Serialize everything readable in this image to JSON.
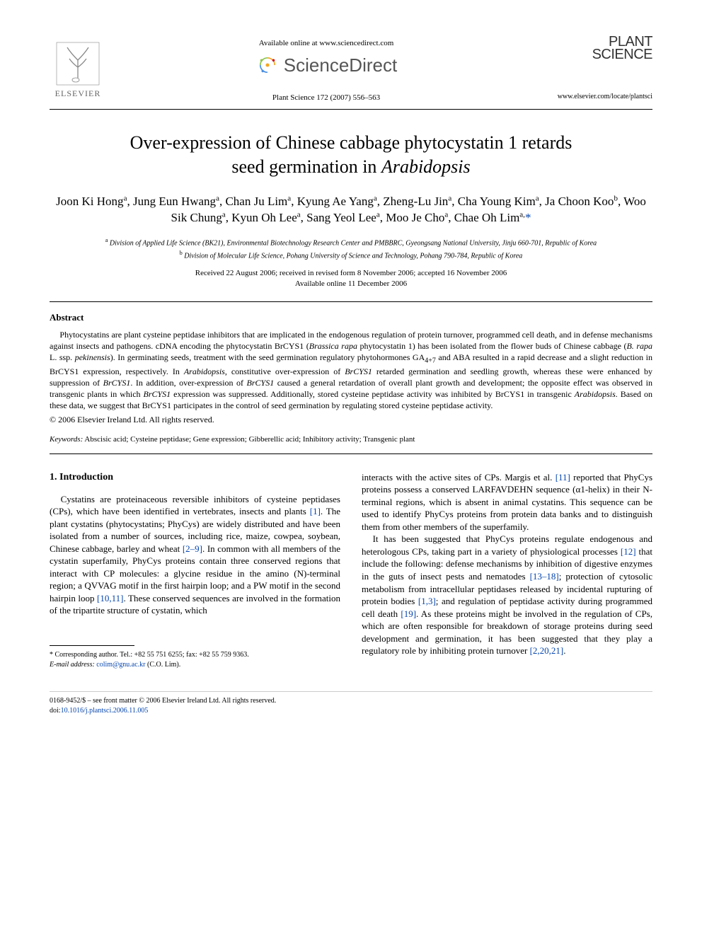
{
  "header": {
    "available_online": "Available online at www.sciencedirect.com",
    "sciencedirect": "ScienceDirect",
    "journal_ref": "Plant Science 172 (2007) 556–563",
    "elsevier": "ELSEVIER",
    "plant_science_top": "PLANT",
    "plant_science_bottom": "SCIENCE",
    "journal_url": "www.elsevier.com/locate/plantsci"
  },
  "title_line1": "Over-expression of Chinese cabbage phytocystatin 1 retards",
  "title_line2_pre": "seed germination in ",
  "title_line2_italic": "Arabidopsis",
  "authors_html": "Joon Ki Hong<sup>a</sup>, Jung Eun Hwang<sup>a</sup>, Chan Ju Lim<sup>a</sup>, Kyung Ae Yang<sup>a</sup>, Zheng-Lu Jin<sup>a</sup>, Cha Young Kim<sup>a</sup>, Ja Choon Koo<sup>b</sup>, Woo Sik Chung<sup>a</sup>, Kyun Oh Lee<sup>a</sup>, Sang Yeol Lee<sup>a</sup>, Moo Je Cho<sup>a</sup>, Chae Oh Lim<sup>a,</sup>",
  "corr_marker": "*",
  "affiliations": {
    "a": "Division of Applied Life Science (BK21), Environmental Biotechnology Research Center and PMBBRC, Gyeongsang National University, Jinju 660-701, Republic of Korea",
    "b": "Division of Molecular Life Science, Pohang University of Science and Technology, Pohang 790-784, Republic of Korea"
  },
  "dates_line1": "Received 22 August 2006; received in revised form 8 November 2006; accepted 16 November 2006",
  "dates_line2": "Available online 11 December 2006",
  "abstract_heading": "Abstract",
  "abstract_body": "Phytocystatins are plant cysteine peptidase inhibitors that are implicated in the endogenous regulation of protein turnover, programmed cell death, and in defense mechanisms against insects and pathogens. cDNA encoding the phytocystatin BrCYS1 (<span class=\"italic\">Brassica rapa</span> phytocystatin 1) has been isolated from the flower buds of Chinese cabbage (<span class=\"italic\">B. rapa</span> L. ssp. <span class=\"italic\">pekinensis</span>). In germinating seeds, treatment with the seed germination regulatory phytohormones GA<sub>4+7</sub> and ABA resulted in a rapid decrease and a slight reduction in BrCYS1 expression, respectively. In <span class=\"italic\">Arabidopsis</span>, constitutive over-expression of <span class=\"italic\">BrCYS1</span> retarded germination and seedling growth, whereas these were enhanced by suppression of <span class=\"italic\">BrCYS1</span>. In addition, over-expression of <span class=\"italic\">BrCYS1</span> caused a general retardation of overall plant growth and development; the opposite effect was observed in transgenic plants in which <span class=\"italic\">BrCYS1</span> expression was suppressed. Additionally, stored cysteine peptidase activity was inhibited by BrCYS1 in transgenic <span class=\"italic\">Arabidopsis</span>. Based on these data, we suggest that BrCYS1 participates in the control of seed germination by regulating stored cysteine peptidase activity.",
  "copyright_line": "© 2006 Elsevier Ireland Ltd. All rights reserved.",
  "keywords_label": "Keywords:",
  "keywords_text": " Abscisic acid; Cysteine peptidase; Gene expression; Gibberellic acid; Inhibitory activity; Transgenic plant",
  "intro_heading": "1. Introduction",
  "intro_col1_p1": "Cystatins are proteinaceous reversible inhibitors of cysteine peptidases (CPs), which have been identified in vertebrates, insects and plants <a class=\"ref\" href=\"#\">[1]</a>. The plant cystatins (phytocystatins; PhyCys) are widely distributed and have been isolated from a number of sources, including rice, maize, cowpea, soybean, Chinese cabbage, barley and wheat <a class=\"ref\" href=\"#\">[2–9]</a>. In common with all members of the cystatin superfamily, PhyCys proteins contain three conserved regions that interact with CP molecules: a glycine residue in the amino (N)-terminal region; a QVVAG motif in the first hairpin loop; and a PW motif in the second hairpin loop <a class=\"ref\" href=\"#\">[10,11]</a>. These conserved sequences are involved in the formation of the tripartite structure of cystatin, which",
  "intro_col2_p1": "interacts with the active sites of CPs. Margis et al. <a class=\"ref\" href=\"#\">[11]</a> reported that PhyCys proteins possess a conserved LARFAVDEHN sequence (α1-helix) in their N-terminal regions, which is absent in animal cystatins. This sequence can be used to identify PhyCys proteins from protein data banks and to distinguish them from other members of the superfamily.",
  "intro_col2_p2": "It has been suggested that PhyCys proteins regulate endogenous and heterologous CPs, taking part in a variety of physiological processes <a class=\"ref\" href=\"#\">[12]</a> that include the following: defense mechanisms by inhibition of digestive enzymes in the guts of insect pests and nematodes <a class=\"ref\" href=\"#\">[13–18]</a>; protection of cytosolic metabolism from intracellular peptidases released by incidental rupturing of protein bodies <a class=\"ref\" href=\"#\">[1,3]</a>; and regulation of peptidase activity during programmed cell death <a class=\"ref\" href=\"#\">[19]</a>. As these proteins might be involved in the regulation of CPs, which are often responsible for breakdown of storage proteins during seed development and germination, it has been suggested that they play a regulatory role by inhibiting protein turnover <a class=\"ref\" href=\"#\">[2,20,21]</a>.",
  "footnote_corr": "* Corresponding author. Tel.: +82 55 751 6255; fax: +82 55 759 9363.",
  "footnote_email_label": "E-mail address:",
  "footnote_email": "colim@gnu.ac.kr",
  "footnote_email_tail": " (C.O. Lim).",
  "bottom_issn": "0168-9452/$ – see front matter © 2006 Elsevier Ireland Ltd. All rights reserved.",
  "bottom_doi_label": "doi:",
  "bottom_doi": "10.1016/j.plantsci.2006.11.005",
  "colors": {
    "link": "#0645ad",
    "text": "#000000",
    "background": "#ffffff"
  }
}
